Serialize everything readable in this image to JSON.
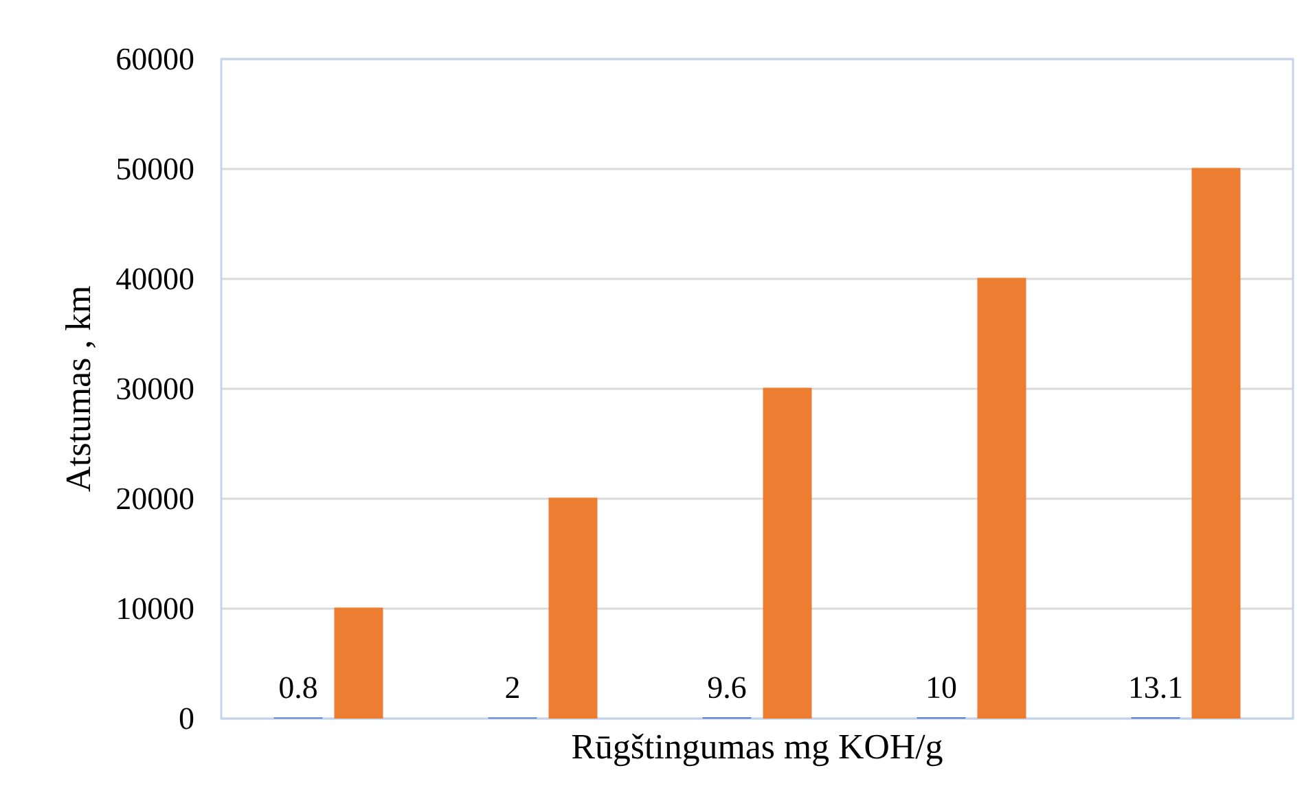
{
  "chart_data": {
    "type": "bar",
    "xlabel": "Rūgštingumas mg KOH/g",
    "ylabel": "Atstumas , km",
    "categories": [
      null,
      null,
      null,
      null,
      null
    ],
    "series": [
      {
        "color": "#4472c4",
        "values": [
          0.8,
          2,
          9.6,
          10,
          13.1
        ],
        "value_labels": [
          "0.8",
          "2",
          "9.6",
          "10",
          "13.1"
        ]
      },
      {
        "color": "#ed7d31",
        "values": [
          10000,
          20000,
          30000,
          40000,
          50000
        ]
      }
    ],
    "ylim": [
      0,
      60000
    ],
    "yticks": [
      0,
      10000,
      20000,
      30000,
      40000,
      50000,
      60000
    ],
    "grid": "y"
  }
}
